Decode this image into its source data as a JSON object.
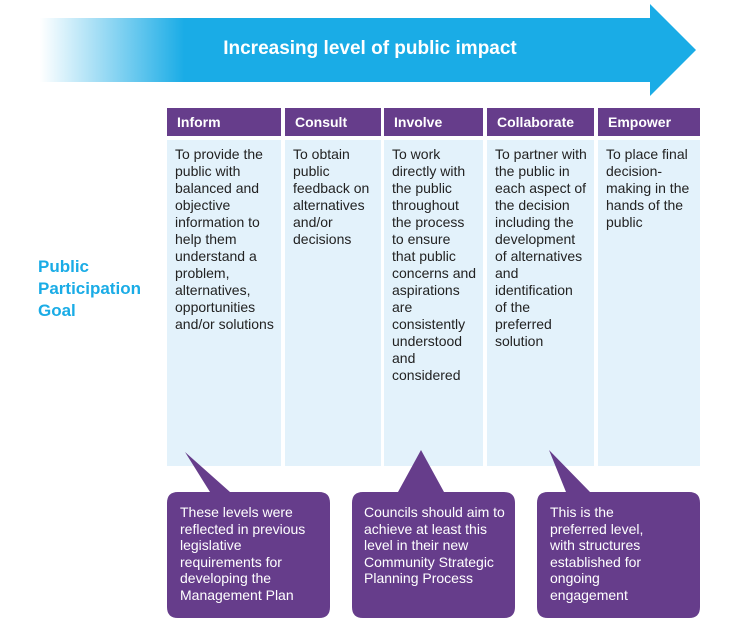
{
  "header": {
    "title": "Increasing level of public impact"
  },
  "side_label": {
    "line1": "Public",
    "line2": "Participation",
    "line3": "Goal"
  },
  "columns": [
    {
      "title": "Inform",
      "description": "To provide the public with balanced and objective information to help them understand a problem, alternatives, opportunities and/or solutions"
    },
    {
      "title": "Consult",
      "description": "To obtain public feedback on alternatives and/or decisions"
    },
    {
      "title": "Involve",
      "description": "To work directly with the public throughout the process to ensure that public concerns and aspirations are consistently understood and considered"
    },
    {
      "title": "Collaborate",
      "description": "To partner with the public in each aspect of the decision including the development of alternatives and identification of the preferred solution"
    },
    {
      "title": "Empower",
      "description": "To place final decision-making in the hands of the public"
    }
  ],
  "callouts": [
    {
      "text": "These levels were reflected in previous legislative requirements for developing the Management Plan"
    },
    {
      "text": "Councils should aim to achieve at least this level in their new Community Strategic Planning Process"
    },
    {
      "text": "This is the preferred level, with structures established for ongoing engagement"
    }
  ],
  "colors": {
    "arrow": "#1aace6",
    "header": "#663d8b",
    "body": "#e3f2fb",
    "callout": "#663d8b",
    "side_label": "#1aace6"
  }
}
